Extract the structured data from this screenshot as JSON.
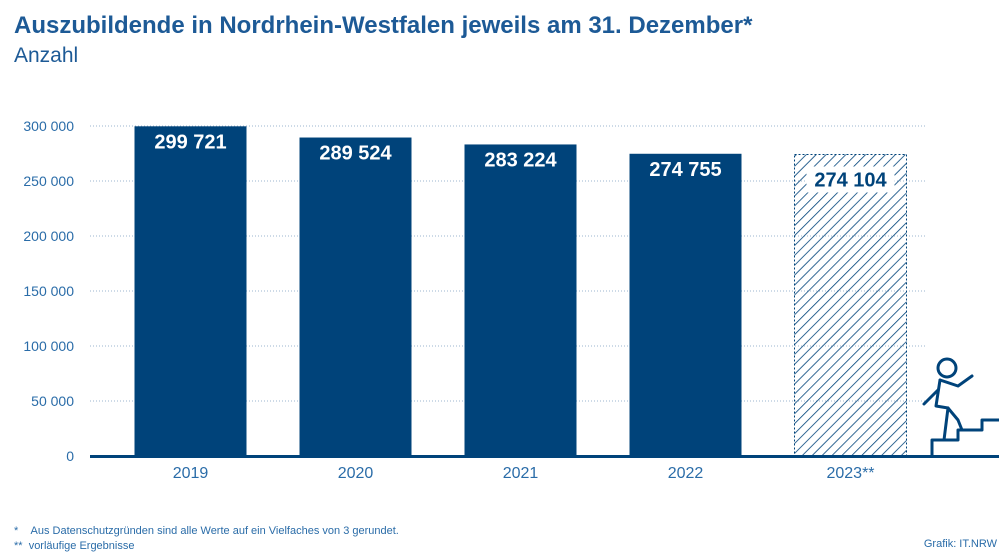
{
  "chart_data": {
    "type": "bar",
    "title": "Auszubildende in Nordrhein-Westfalen jeweils am 31. Dezember*",
    "subtitle": "Anzahl",
    "categories": [
      "2019",
      "2020",
      "2021",
      "2022",
      "2023**"
    ],
    "values": [
      299721,
      289524,
      283224,
      274755,
      274104
    ],
    "value_labels": [
      "299 721",
      "289 524",
      "283 224",
      "274 755",
      "274 104"
    ],
    "provisional": [
      false,
      false,
      false,
      false,
      true
    ],
    "ylim": [
      0,
      300000
    ],
    "yticks": [
      0,
      50000,
      100000,
      150000,
      200000,
      250000,
      300000
    ],
    "ytick_labels": [
      "0",
      "50 000",
      "100 000",
      "150 000",
      "200 000",
      "250 000",
      "300 000"
    ],
    "grid": true,
    "colors": {
      "bar": "#00437a",
      "provisional_hatch": "#00437a",
      "axis_text": "#2a6ca8",
      "title": "#1d5a96"
    }
  },
  "footnotes": [
    {
      "mark": "*",
      "text": "Aus Datenschutzgründen sind alle Werte auf ein Vielfaches von 3 gerundet."
    },
    {
      "mark": "**",
      "text": "vorläufige Ergebnisse"
    }
  ],
  "credit": "Grafik: IT.NRW",
  "decoration_icon": "person-climbing-stairs-icon"
}
